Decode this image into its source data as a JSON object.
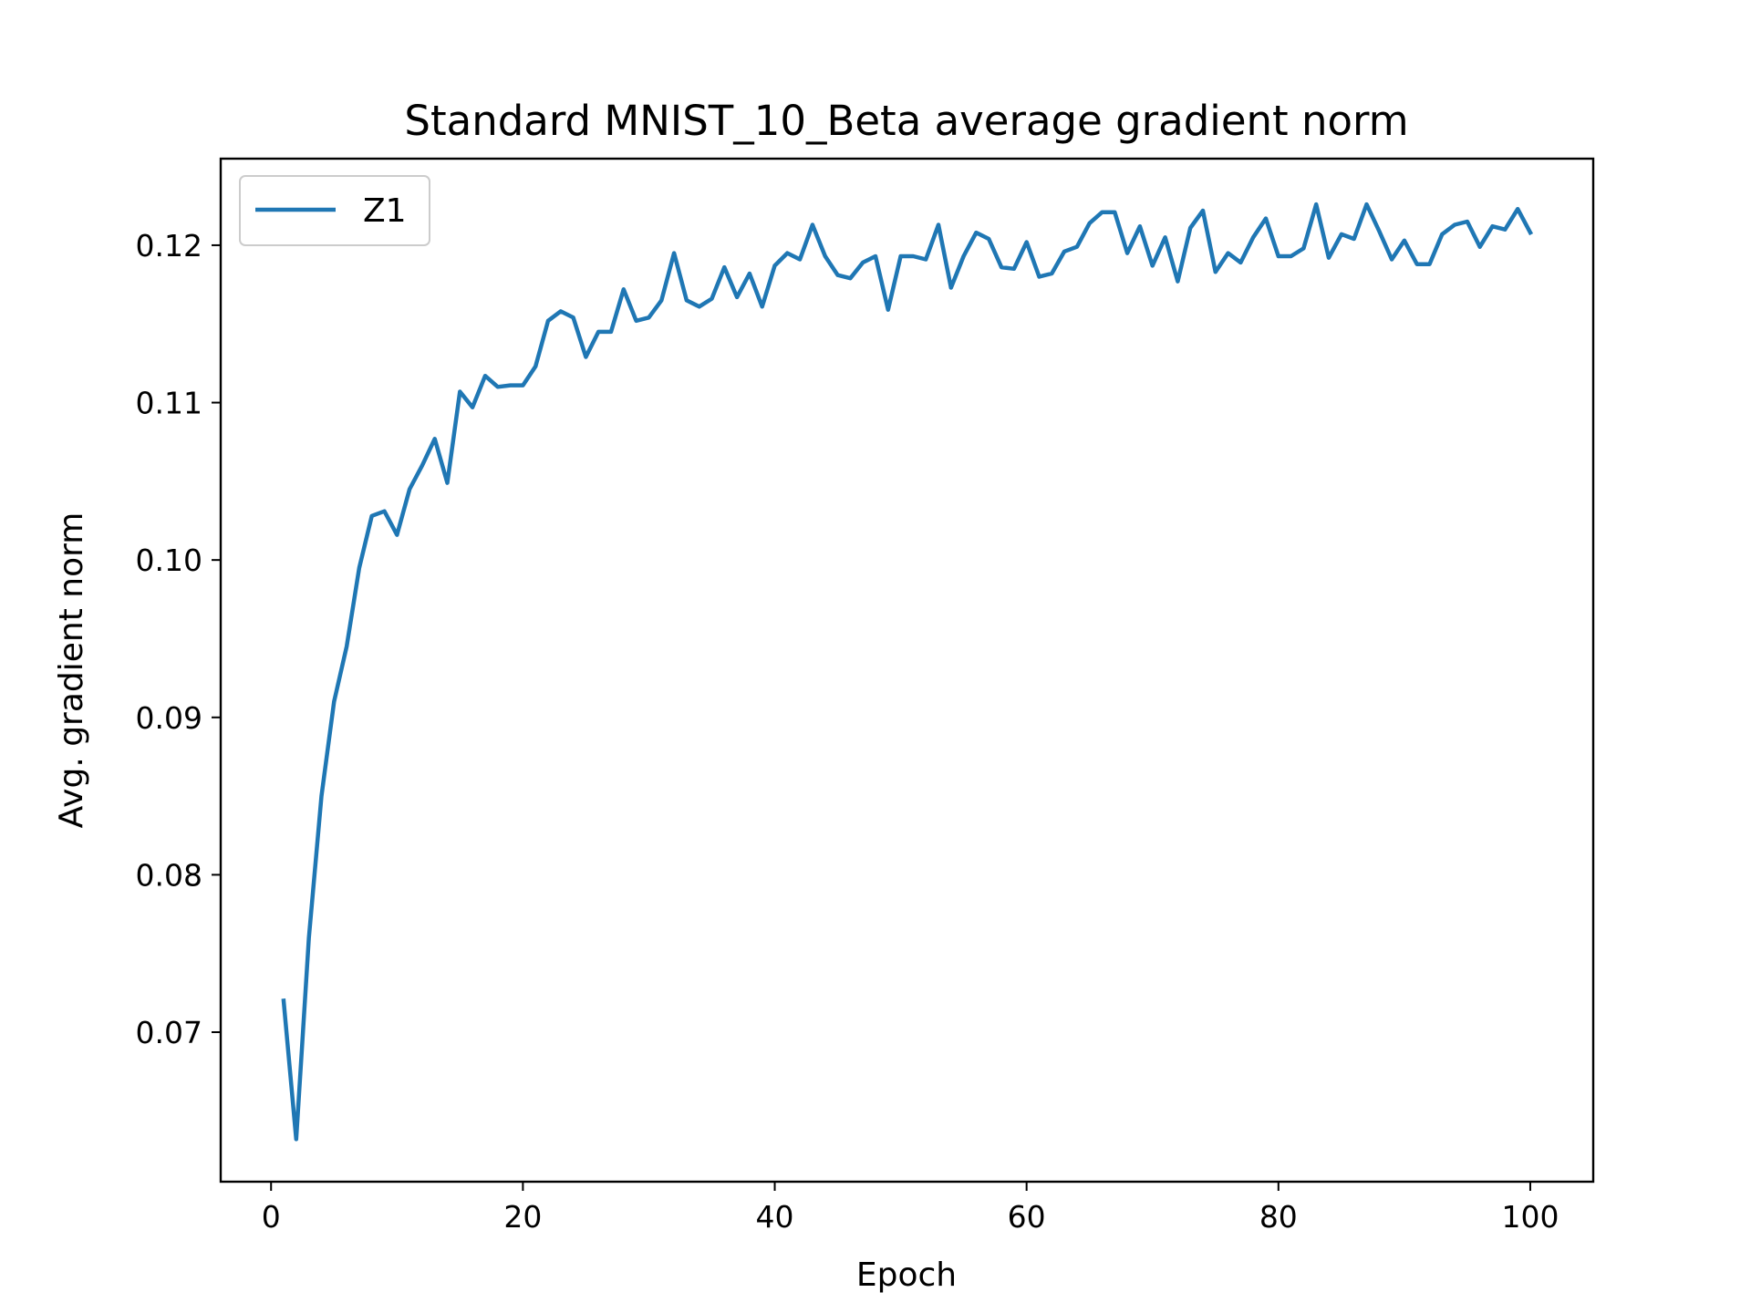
{
  "chart_data": {
    "type": "line",
    "title": "Standard MNIST_10_Beta average gradient norm",
    "xlabel": "Epoch",
    "ylabel": "Avg. gradient norm",
    "xlim": [
      -4,
      105
    ],
    "ylim": [
      0.0605,
      0.1255
    ],
    "xticks": [
      0,
      20,
      40,
      60,
      80,
      100
    ],
    "yticks": [
      0.07,
      0.08,
      0.09,
      0.1,
      0.11,
      0.12
    ],
    "xtick_labels": [
      "0",
      "20",
      "40",
      "60",
      "80",
      "100"
    ],
    "ytick_labels": [
      "0.07",
      "0.08",
      "0.09",
      "0.10",
      "0.11",
      "0.12"
    ],
    "grid": false,
    "legend": {
      "position": "upper-left",
      "entries": [
        "Z1"
      ]
    },
    "colors": {
      "Z1": "#1f77b4"
    },
    "series": [
      {
        "name": "Z1",
        "x": [
          1,
          2,
          3,
          4,
          5,
          6,
          7,
          8,
          9,
          10,
          11,
          12,
          13,
          14,
          15,
          16,
          17,
          18,
          19,
          20,
          21,
          22,
          23,
          24,
          25,
          26,
          27,
          28,
          29,
          30,
          31,
          32,
          33,
          34,
          35,
          36,
          37,
          38,
          39,
          40,
          41,
          42,
          43,
          44,
          45,
          46,
          47,
          48,
          49,
          50,
          51,
          52,
          53,
          54,
          55,
          56,
          57,
          58,
          59,
          60,
          61,
          62,
          63,
          64,
          65,
          66,
          67,
          68,
          69,
          70,
          71,
          72,
          73,
          74,
          75,
          76,
          77,
          78,
          79,
          80,
          81,
          82,
          83,
          84,
          85,
          86,
          87,
          88,
          89,
          90,
          91,
          92,
          93,
          94,
          95,
          96,
          97,
          98,
          99,
          100
        ],
        "values": [
          0.072,
          0.0632,
          0.076,
          0.085,
          0.091,
          0.0945,
          0.0995,
          0.1028,
          0.1031,
          0.1016,
          0.1045,
          0.106,
          0.1077,
          0.1049,
          0.1107,
          0.1097,
          0.1117,
          0.111,
          0.1111,
          0.1111,
          0.1123,
          0.1152,
          0.1158,
          0.1154,
          0.1129,
          0.1145,
          0.1145,
          0.1172,
          0.1152,
          0.1154,
          0.1165,
          0.1195,
          0.1165,
          0.1161,
          0.1166,
          0.1186,
          0.1167,
          0.1182,
          0.1161,
          0.1187,
          0.1195,
          0.1191,
          0.1213,
          0.1193,
          0.1181,
          0.1179,
          0.1189,
          0.1193,
          0.1159,
          0.1193,
          0.1193,
          0.1191,
          0.1213,
          0.1173,
          0.1193,
          0.1208,
          0.1204,
          0.1186,
          0.1185,
          0.1202,
          0.118,
          0.1182,
          0.1196,
          0.1199,
          0.1214,
          0.1221,
          0.1221,
          0.1195,
          0.1212,
          0.1187,
          0.1205,
          0.1177,
          0.1211,
          0.1222,
          0.1183,
          0.1195,
          0.1189,
          0.1205,
          0.1217,
          0.1193,
          0.1193,
          0.1198,
          0.1226,
          0.1192,
          0.1207,
          0.1204,
          0.1226,
          0.1209,
          0.1191,
          0.1203,
          0.1188,
          0.1188,
          0.1207,
          0.1213,
          0.1215,
          0.1199,
          0.1212,
          0.121,
          0.1223,
          0.1208
        ]
      }
    ]
  }
}
